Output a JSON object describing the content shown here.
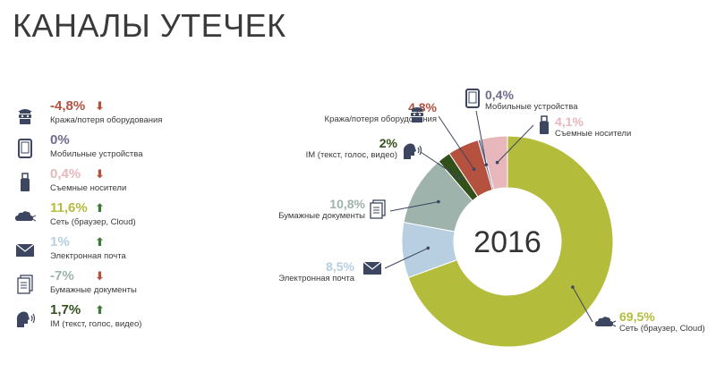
{
  "title": "КАНАЛЫ УТЕЧЕК",
  "colors": {
    "green_dark": "#34501a",
    "olive": "#b4bc3c",
    "gray_blue": "#9fb3ad",
    "light_blue": "#b7cfe0",
    "red_brown": "#b4513f",
    "pink": "#e8b7bb",
    "purple_gray": "#6f6b8e",
    "text": "#3a3a3a"
  },
  "legend": [
    {
      "icon": "thief-icon",
      "value": "-4,8%",
      "trend": "down",
      "label": "Кража/потеря оборудования",
      "color": "#b4513f"
    },
    {
      "icon": "tablet-icon",
      "value": "0%",
      "trend": "none",
      "label": "Мобильные устройства",
      "color": "#6f6b8e"
    },
    {
      "icon": "usb-icon",
      "value": "0,4%",
      "trend": "down",
      "label": "Съемные носители",
      "color": "#e8b7bb"
    },
    {
      "icon": "cloud-network-icon",
      "value": "11,6%",
      "trend": "up",
      "label": "Сеть (браузер, Cloud)",
      "color": "#b4bc3c"
    },
    {
      "icon": "envelope-icon",
      "value": "1%",
      "trend": "up",
      "label": "Электронная почта",
      "color": "#b7cfe0"
    },
    {
      "icon": "documents-icon",
      "value": "-7%",
      "trend": "down",
      "label": "Бумажные документы",
      "color": "#9fb3ad"
    },
    {
      "icon": "speaking-head-icon",
      "value": "1,7%",
      "trend": "up",
      "label": "IM (текст, голос, видео)",
      "color": "#34501a"
    }
  ],
  "chart_data": {
    "type": "pie",
    "center_label": "2016",
    "slices": [
      {
        "label": "Сеть (браузер, Cloud)",
        "value": 69.5,
        "display": "69,5%",
        "color": "#b4bc3c"
      },
      {
        "label": "Электронная почта",
        "value": 8.5,
        "display": "8,5%",
        "color": "#b7cfe0"
      },
      {
        "label": "Бумажные документы",
        "value": 10.8,
        "display": "10,8%",
        "color": "#9fb3ad"
      },
      {
        "label": "IM (текст, голос, видео)",
        "value": 2,
        "display": "2%",
        "color": "#34501a"
      },
      {
        "label": "Кража/потеря оборудования",
        "value": 4.8,
        "display": "4,8%",
        "color": "#b4513f"
      },
      {
        "label": "Мобильные устройства",
        "value": 0.4,
        "display": "0,4%",
        "color": "#6f6b8e"
      },
      {
        "label": "Съемные носители",
        "value": 4.1,
        "display": "4,1%",
        "color": "#e8b7bb"
      }
    ]
  },
  "callouts": {
    "theft": {
      "value": "4,8%",
      "label": "Кража/потеря оборудования"
    },
    "mobile": {
      "value": "0,4%",
      "label": "Мобильные устройства"
    },
    "removable": {
      "value": "4,1%",
      "label": "Съемные носители"
    },
    "im": {
      "value": "2%",
      "label": "IM (текст, голос, видео)"
    },
    "paper": {
      "value": "10,8%",
      "label": "Бумажные документы"
    },
    "email": {
      "value": "8,5%",
      "label": "Электронная почта"
    },
    "network": {
      "value": "69,5%",
      "label": "Сеть (браузер, Cloud)"
    }
  }
}
